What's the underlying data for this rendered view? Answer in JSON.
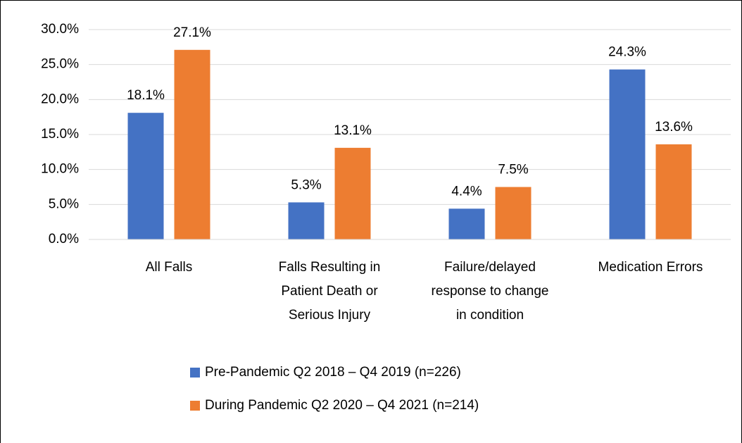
{
  "chart_data": {
    "type": "bar",
    "categories": [
      "All Falls",
      "Falls Resulting in Patient Death or Serious Injury",
      "Failure/delayed response to change in condition",
      "Medication Errors"
    ],
    "series": [
      {
        "name": "Pre-Pandemic Q2 2018 – Q4 2019 (n=226)",
        "color": "#4472c4",
        "values": [
          18.1,
          5.3,
          4.4,
          24.3
        ],
        "value_labels": [
          "18.1%",
          "5.3%",
          "4.4%",
          "24.3%"
        ]
      },
      {
        "name": "During Pandemic Q2 2020 – Q4 2021 (n=214)",
        "color": "#ed7d31",
        "values": [
          27.1,
          13.1,
          7.5,
          13.6
        ],
        "value_labels": [
          "27.1%",
          "13.1%",
          "7.5%",
          "13.6%"
        ]
      }
    ],
    "ylim": [
      0,
      30
    ],
    "yticks": [
      {
        "value": 0,
        "label": "0.0%"
      },
      {
        "value": 5,
        "label": "5.0%"
      },
      {
        "value": 10,
        "label": "10.0%"
      },
      {
        "value": 15,
        "label": "15.0%"
      },
      {
        "value": 20,
        "label": "20.0%"
      },
      {
        "value": 25,
        "label": "25.0%"
      },
      {
        "value": 30,
        "label": "30.0%"
      }
    ],
    "grid": true
  }
}
